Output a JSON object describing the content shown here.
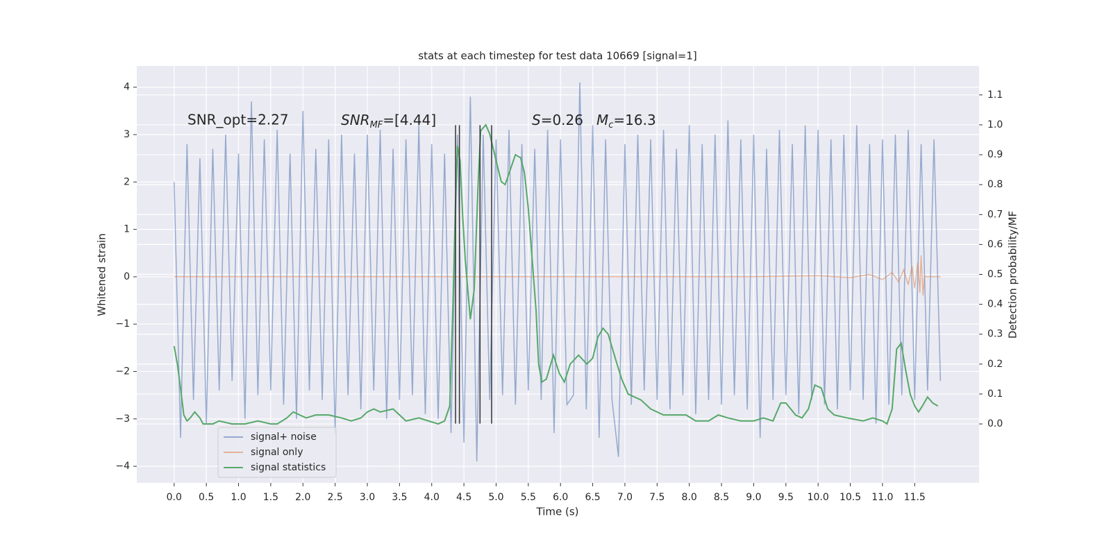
{
  "chart_data": {
    "type": "line",
    "title": "stats at each timestep for test data 10669 [signal=1]",
    "xlabel": "Time (s)",
    "ylabel": "Whitened strain",
    "y2label": "Detection probability/MF",
    "xlim": [
      -0.58,
      12.5
    ],
    "ylim": [
      -4.35,
      4.45
    ],
    "y2lim": [
      -0.197,
      1.197
    ],
    "xticks": [
      {
        "value": 0,
        "label": "0.0"
      },
      0.5,
      {
        "value": 1,
        "label": "1.0"
      },
      1.5,
      {
        "value": 2,
        "label": "2.0"
      },
      2.5,
      {
        "value": 3,
        "label": "3.0"
      },
      3.5,
      {
        "value": 4,
        "label": "4.0"
      },
      4.5,
      {
        "value": 5,
        "label": "5.0"
      },
      5.5,
      {
        "value": 6,
        "label": "6.0"
      },
      6.5,
      {
        "value": 7,
        "label": "7.0"
      },
      7.5,
      {
        "value": 8,
        "label": "8.0"
      },
      8.5,
      {
        "value": 9,
        "label": "9.0"
      },
      9.5,
      {
        "value": 10,
        "label": "10.0"
      },
      10.5,
      {
        "value": 11,
        "label": "11.0"
      },
      11.5
    ],
    "yticks": [
      {
        "value": -4,
        "label": "−4"
      },
      {
        "value": -3,
        "label": "−3"
      },
      {
        "value": -2,
        "label": "−2"
      },
      {
        "value": -1,
        "label": "−1"
      },
      0,
      1,
      2,
      3,
      4
    ],
    "y2ticks": [
      {
        "value": 0,
        "label": "0.0"
      },
      0.1,
      0.2,
      0.3,
      0.4,
      0.5,
      0.6,
      0.7,
      0.8,
      0.9,
      {
        "value": 1,
        "label": "1.0"
      },
      1.1
    ],
    "grid": true,
    "legend": "lower left",
    "series": [
      {
        "name": "signal+ noise",
        "color": "#4c72b0",
        "x": [
          0,
          0.1,
          0.2,
          0.3,
          0.4,
          0.5,
          0.6,
          0.7,
          0.8,
          0.9,
          1,
          1.1,
          1.2,
          1.3,
          1.4,
          1.5,
          1.6,
          1.7,
          1.8,
          1.9,
          2,
          2.1,
          2.2,
          2.3,
          2.4,
          2.5,
          2.6,
          2.7,
          2.8,
          2.9,
          3,
          3.1,
          3.2,
          3.3,
          3.4,
          3.5,
          3.6,
          3.7,
          3.8,
          3.9,
          4,
          4.1,
          4.2,
          4.3,
          4.4,
          4.5,
          4.6,
          4.7,
          4.8,
          4.9,
          5,
          5.1,
          5.2,
          5.3,
          5.4,
          5.5,
          5.6,
          5.7,
          5.8,
          5.9,
          6,
          6.1,
          6.2,
          6.3,
          6.4,
          6.5,
          6.6,
          6.7,
          6.8,
          6.9,
          7,
          7.1,
          7.2,
          7.3,
          7.4,
          7.5,
          7.6,
          7.7,
          7.8,
          7.9,
          8,
          8.1,
          8.2,
          8.3,
          8.4,
          8.5,
          8.6,
          8.7,
          8.8,
          8.9,
          9,
          9.1,
          9.2,
          9.3,
          9.4,
          9.5,
          9.6,
          9.7,
          9.8,
          9.9,
          10,
          10.1,
          10.2,
          10.3,
          10.4,
          10.5,
          10.6,
          10.7,
          10.8,
          10.9,
          11,
          11.1,
          11.2,
          11.3,
          11.4,
          11.5,
          11.6,
          11.7,
          11.8,
          11.9
        ],
        "values": [
          2.0,
          -3.4,
          2.8,
          -2.6,
          2.5,
          -3.1,
          2.7,
          -2.4,
          3.0,
          -2.2,
          2.6,
          -3.0,
          3.7,
          -2.5,
          2.9,
          -2.4,
          3.1,
          -2.7,
          2.6,
          -3.0,
          3.5,
          -2.4,
          2.7,
          -2.6,
          2.9,
          -3.3,
          3.0,
          -2.5,
          2.6,
          -2.8,
          3.0,
          -2.4,
          3.1,
          -3.0,
          2.7,
          -2.6,
          2.9,
          -2.5,
          3.2,
          -2.9,
          2.8,
          -3.0,
          2.6,
          -3.3,
          3.0,
          -3.5,
          3.8,
          -3.9,
          3.0,
          -2.6,
          2.9,
          -2.5,
          3.1,
          -2.7,
          2.8,
          -2.4,
          2.7,
          -2.6,
          3.1,
          -3.3,
          2.9,
          -2.7,
          -2.5,
          4.1,
          -2.8,
          3.2,
          -3.4,
          2.9,
          -2.6,
          -3.8,
          2.8,
          -2.7,
          3.0,
          -2.4,
          2.9,
          -2.6,
          3.1,
          -2.8,
          2.7,
          -2.5,
          3.2,
          -2.9,
          2.8,
          -2.6,
          3.0,
          -2.7,
          3.3,
          -2.5,
          2.9,
          -2.8,
          3.0,
          -3.4,
          2.7,
          -2.6,
          3.1,
          -2.5,
          2.8,
          -2.9,
          3.2,
          -2.6,
          3.1,
          -2.7,
          2.9,
          -2.8,
          3.0,
          -2.4,
          3.2,
          -2.6,
          2.8,
          -3.1,
          2.9,
          -2.7,
          3.0,
          -2.5,
          3.1,
          -2.6,
          2.8,
          -2.4,
          2.9,
          -2.2
        ]
      },
      {
        "name": "signal only",
        "color": "#dd8452",
        "x": [
          0,
          9,
          10,
          10.5,
          10.8,
          11.0,
          11.15,
          11.25,
          11.33,
          11.4,
          11.46,
          11.5,
          11.55,
          11.58,
          11.6,
          11.63,
          11.65,
          11.9
        ],
        "values": [
          0,
          0,
          0.02,
          -0.02,
          0.05,
          -0.06,
          0.09,
          -0.11,
          0.15,
          -0.17,
          0.22,
          -0.24,
          0.3,
          -0.34,
          0.45,
          -0.4,
          0,
          0
        ]
      },
      {
        "name": "signal statistics",
        "color": "#55a868",
        "axis": "y2",
        "x": [
          0,
          0.05,
          0.1,
          0.15,
          0.2,
          0.25,
          0.32,
          0.4,
          0.45,
          0.6,
          0.7,
          0.9,
          1.1,
          1.3,
          1.5,
          1.6,
          1.75,
          1.85,
          1.95,
          2.05,
          2.2,
          2.4,
          2.6,
          2.75,
          2.9,
          3.0,
          3.1,
          3.2,
          3.4,
          3.5,
          3.6,
          3.8,
          3.95,
          4.1,
          4.2,
          4.28,
          4.33,
          4.37,
          4.4,
          4.44,
          4.48,
          4.52,
          4.6,
          4.66,
          4.72,
          4.76,
          4.84,
          4.9,
          5.0,
          5.08,
          5.14,
          5.22,
          5.3,
          5.38,
          5.44,
          5.5,
          5.56,
          5.62,
          5.66,
          5.71,
          5.78,
          5.89,
          5.98,
          6.06,
          6.15,
          6.28,
          6.41,
          6.5,
          6.58,
          6.66,
          6.74,
          6.85,
          6.95,
          7.05,
          7.25,
          7.4,
          7.6,
          7.8,
          7.95,
          8.1,
          8.3,
          8.45,
          8.6,
          8.8,
          9.0,
          9.15,
          9.3,
          9.42,
          9.5,
          9.65,
          9.75,
          9.85,
          9.95,
          10.05,
          10.15,
          10.25,
          10.45,
          10.7,
          10.85,
          11.0,
          11.07,
          11.15,
          11.22,
          11.29,
          11.36,
          11.43,
          11.5,
          11.56,
          11.62,
          11.7,
          11.78,
          11.86
        ],
        "values": [
          0.26,
          0.2,
          0.12,
          0.03,
          0.01,
          0.02,
          0.04,
          0.02,
          0.0,
          0.0,
          0.01,
          0.0,
          0.0,
          0.01,
          0.0,
          0.0,
          0.02,
          0.04,
          0.03,
          0.02,
          0.03,
          0.03,
          0.02,
          0.01,
          0.02,
          0.04,
          0.05,
          0.04,
          0.05,
          0.03,
          0.01,
          0.02,
          0.01,
          0.0,
          0.01,
          0.06,
          0.4,
          0.75,
          0.93,
          0.88,
          0.7,
          0.55,
          0.35,
          0.45,
          0.8,
          0.98,
          1.0,
          0.97,
          0.88,
          0.81,
          0.8,
          0.85,
          0.9,
          0.89,
          0.84,
          0.72,
          0.55,
          0.38,
          0.2,
          0.14,
          0.15,
          0.23,
          0.17,
          0.14,
          0.2,
          0.23,
          0.2,
          0.22,
          0.29,
          0.32,
          0.3,
          0.22,
          0.15,
          0.1,
          0.08,
          0.05,
          0.03,
          0.03,
          0.03,
          0.01,
          0.01,
          0.03,
          0.02,
          0.01,
          0.01,
          0.02,
          0.01,
          0.07,
          0.07,
          0.03,
          0.02,
          0.05,
          0.13,
          0.12,
          0.05,
          0.03,
          0.02,
          0.01,
          0.02,
          0.01,
          0.0,
          0.05,
          0.25,
          0.27,
          0.18,
          0.1,
          0.06,
          0.04,
          0.06,
          0.09,
          0.07,
          0.06
        ]
      }
    ],
    "vlines": {
      "x": [
        4.37,
        4.43,
        4.75,
        4.93
      ],
      "ymin": -3.1,
      "ymax": 3.2,
      "color": "#333333"
    },
    "annotations": [
      {
        "text": "SNR_opt=2.27"
      },
      {
        "base": "SNR",
        "sub": "MF",
        "text": "=[4.44]"
      },
      {
        "base": "S",
        "text": "=0.26"
      },
      {
        "base": "M",
        "sub": "c",
        "text": "=16.3"
      }
    ]
  }
}
